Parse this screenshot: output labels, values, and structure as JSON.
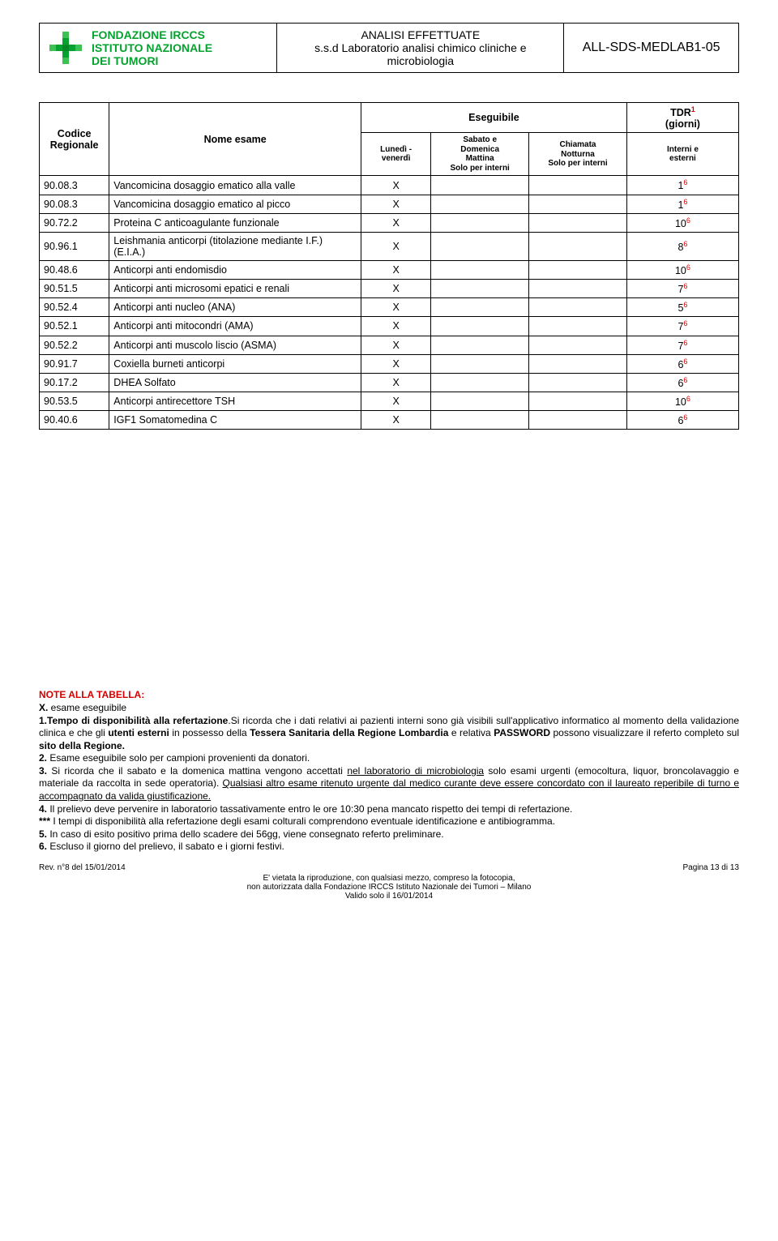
{
  "header": {
    "org_line1": "FONDAZIONE IRCCS",
    "org_line2": "ISTITUTO NAZIONALE",
    "org_line3": "DEI TUMORI",
    "title_line1": "ANALISI EFFETTUATE",
    "title_line2": "s.s.d Laboratorio analisi chimico cliniche e microbiologia",
    "doc_id": "ALL-SDS-MEDLAB1-05",
    "logo_color": "#06a22f"
  },
  "table": {
    "headers": {
      "codice": "Codice Regionale",
      "nome": "Nome esame",
      "eseguibile": "Eseguibile",
      "tdr": "TDR",
      "tdr_sup": "1",
      "tdr_sub": "(giorni)",
      "col_e1": "Lunedì - venerdì",
      "col_e2_l1": "Sabato e",
      "col_e2_l2": "Domenica",
      "col_e2_l3": "Mattina",
      "col_e2_l4": "Solo per interni",
      "col_e3_l1": "Chiamata",
      "col_e3_l2": "Notturna",
      "col_e3_l3": "Solo per interni",
      "col_tdr_l1": "Interni e",
      "col_tdr_l2": "esterni"
    },
    "rows": [
      {
        "code": "90.08.3",
        "name": "Vancomicina dosaggio ematico alla valle",
        "e1": "X",
        "e2": "",
        "e3": "",
        "tdr": "1",
        "sup": "6"
      },
      {
        "code": "90.08.3",
        "name": "Vancomicina dosaggio ematico al picco",
        "e1": "X",
        "e2": "",
        "e3": "",
        "tdr": "1",
        "sup": "6"
      },
      {
        "code": "90.72.2",
        "name": "Proteina C anticoagulante funzionale",
        "e1": "X",
        "e2": "",
        "e3": "",
        "tdr": "10",
        "sup": "6"
      },
      {
        "code": "90.96.1",
        "name": "Leishmania anticorpi (titolazione mediante I.F.) (E.I.A.)",
        "e1": "X",
        "e2": "",
        "e3": "",
        "tdr": "8",
        "sup": "6"
      },
      {
        "code": "90.48.6",
        "name": "Anticorpi anti endomisdio",
        "e1": "X",
        "e2": "",
        "e3": "",
        "tdr": "10",
        "sup": "6"
      },
      {
        "code": "90.51.5",
        "name": "Anticorpi anti microsomi epatici e renali",
        "e1": "X",
        "e2": "",
        "e3": "",
        "tdr": "7",
        "sup": "6"
      },
      {
        "code": "90.52.4",
        "name": "Anticorpi anti nucleo (ANA)",
        "e1": "X",
        "e2": "",
        "e3": "",
        "tdr": "5",
        "sup": "6"
      },
      {
        "code": "90.52.1",
        "name": "Anticorpi anti mitocondri (AMA)",
        "e1": "X",
        "e2": "",
        "e3": "",
        "tdr": "7",
        "sup": "6"
      },
      {
        "code": "90.52.2",
        "name": "Anticorpi anti muscolo liscio (ASMA)",
        "e1": "X",
        "e2": "",
        "e3": "",
        "tdr": "7",
        "sup": "6"
      },
      {
        "code": "90.91.7",
        "name": "Coxiella burneti anticorpi",
        "e1": "X",
        "e2": "",
        "e3": "",
        "tdr": "6",
        "sup": "6"
      },
      {
        "code": "90.17.2",
        "name": "DHEA Solfato",
        "e1": "X",
        "e2": "",
        "e3": "",
        "tdr": "6",
        "sup": "6"
      },
      {
        "code": "90.53.5",
        "name": "Anticorpi antirecettore TSH",
        "e1": "X",
        "e2": "",
        "e3": "",
        "tdr": "10",
        "sup": "6"
      },
      {
        "code": "90.40.6",
        "name": "IGF1 Somatomedina C",
        "e1": "X",
        "e2": "",
        "e3": "",
        "tdr": "6",
        "sup": "6"
      }
    ]
  },
  "notes": {
    "title": "NOTE ALLA TABELLA:",
    "x_line": " esame eseguibile",
    "n1_lead": "1.Tempo di disponibilità alla refertazione",
    "n1_rest": ".Si ricorda che i dati relativi ai pazienti interni sono già visibili sull'applicativo informatico al momento della validazione clinica e che gli ",
    "n1_bold2": "utenti esterni",
    "n1_rest2": " in possesso della ",
    "n1_bold3": "Tessera Sanitaria della Regione Lombardia",
    "n1_rest3": " e relativa ",
    "n1_bold4": "PASSWORD",
    "n1_rest4": " possono visualizzare il referto completo sul ",
    "n1_bold5": "sito della Regione.",
    "n2_lead": "2.",
    "n2": " Esame eseguibile solo per campioni provenienti da donatori.",
    "n3_lead": "3.",
    "n3a": " Si ricorda che il sabato e la domenica mattina vengono accettati ",
    "n3u1": "nel laboratorio di microbiologia",
    "n3b": " solo esami urgenti (emocoltura, liquor, broncolavaggio e materiale da raccolta in sede operatoria). ",
    "n3u2": "Qualsiasi altro esame ritenuto urgente dal medico curante deve essere concordato con il laureato reperibile di turno e accompagnato da valida giustificazione.",
    "n4_lead": "4.",
    "n4": " Il prelievo deve pervenire in laboratorio tassativamente entro le ore 10:30 pena mancato rispetto dei tempi di refertazione.",
    "nstar_lead": "***",
    "nstar": " I tempi di disponibilità alla refertazione degli esami colturali comprendono eventuale identificazione e antibiogramma.",
    "n5_lead": "5.",
    "n5": " In caso di esito positivo prima dello scadere dei 56gg, viene consegnato referto preliminare.",
    "n6_lead": "6.",
    "n6": " Escluso il giorno del prelievo, il sabato e i giorni festivi."
  },
  "footer": {
    "rev": "Rev. n°8  del 15/01/2014",
    "page": "Pagina 13 di 13",
    "c1": "E' vietata la riproduzione, con qualsiasi mezzo, compreso la fotocopia,",
    "c2": "non autorizzata dalla Fondazione IRCCS Istituto Nazionale dei Tumori – Milano",
    "c3": "Valido solo il 16/01/2014"
  },
  "colors": {
    "red": "#d40000",
    "green": "#06a22f"
  }
}
